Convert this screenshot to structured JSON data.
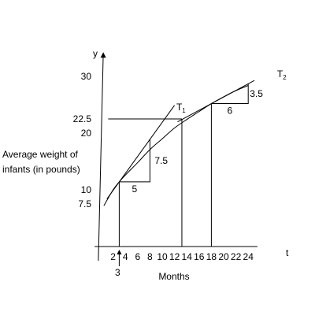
{
  "chart_data": {
    "type": "line",
    "axes": {
      "x_symbol": "t",
      "y_symbol": "y",
      "xlabel": "Months",
      "ylabel": [
        "Average weight of",
        "infants (in pounds)"
      ],
      "x_ticks": [
        2,
        4,
        6,
        8,
        10,
        12,
        14,
        16,
        18,
        20,
        22,
        24
      ],
      "y_ticks": [
        "30",
        "22.5",
        "20",
        "10",
        "7.5"
      ],
      "xlim": [
        -0.5,
        25.5
      ],
      "ylim": [
        -2.5,
        34
      ]
    },
    "curve": [
      {
        "t": 0.5,
        "y": 7.2
      },
      {
        "t": 2,
        "y": 10
      },
      {
        "t": 3,
        "y": 11.4
      },
      {
        "t": 4,
        "y": 12.6
      },
      {
        "t": 6,
        "y": 14.8
      },
      {
        "t": 8,
        "y": 17.1
      },
      {
        "t": 10,
        "y": 19
      },
      {
        "t": 12,
        "y": 20.9
      },
      {
        "t": 14,
        "y": 22.4
      },
      {
        "t": 16,
        "y": 23.8
      },
      {
        "t": 18,
        "y": 25.2
      },
      {
        "t": 20,
        "y": 26.4
      },
      {
        "t": 22,
        "y": 27.5
      },
      {
        "t": 24,
        "y": 28.4
      }
    ],
    "tangents": [
      {
        "name_main": "T",
        "name_sub": "1",
        "point": {
          "t": 3,
          "y": 11.4
        },
        "run": 5,
        "rise": 7.5,
        "x_range": [
          1,
          12
        ]
      },
      {
        "name_main": "T",
        "name_sub": "2",
        "point": {
          "t": 18,
          "y": 25.2
        },
        "run": 6,
        "rise": 3.5,
        "x_range": [
          12.5,
          25
        ]
      }
    ],
    "reference_lines": [
      {
        "y": 22.5,
        "t_from": 1.2,
        "t_to": 13.2
      },
      {
        "t": 13.2,
        "y_from": 0,
        "y_to": 22.5
      },
      {
        "t": 3,
        "y_from": 0,
        "y_to": 11.4
      },
      {
        "t": 18,
        "y_from": 0,
        "y_to": 25.2
      }
    ],
    "annotations": {
      "marker_t": 3,
      "marker_label": "3",
      "run1": "5",
      "rise1": "7.5",
      "run2": "6",
      "rise2": "3.5"
    }
  }
}
